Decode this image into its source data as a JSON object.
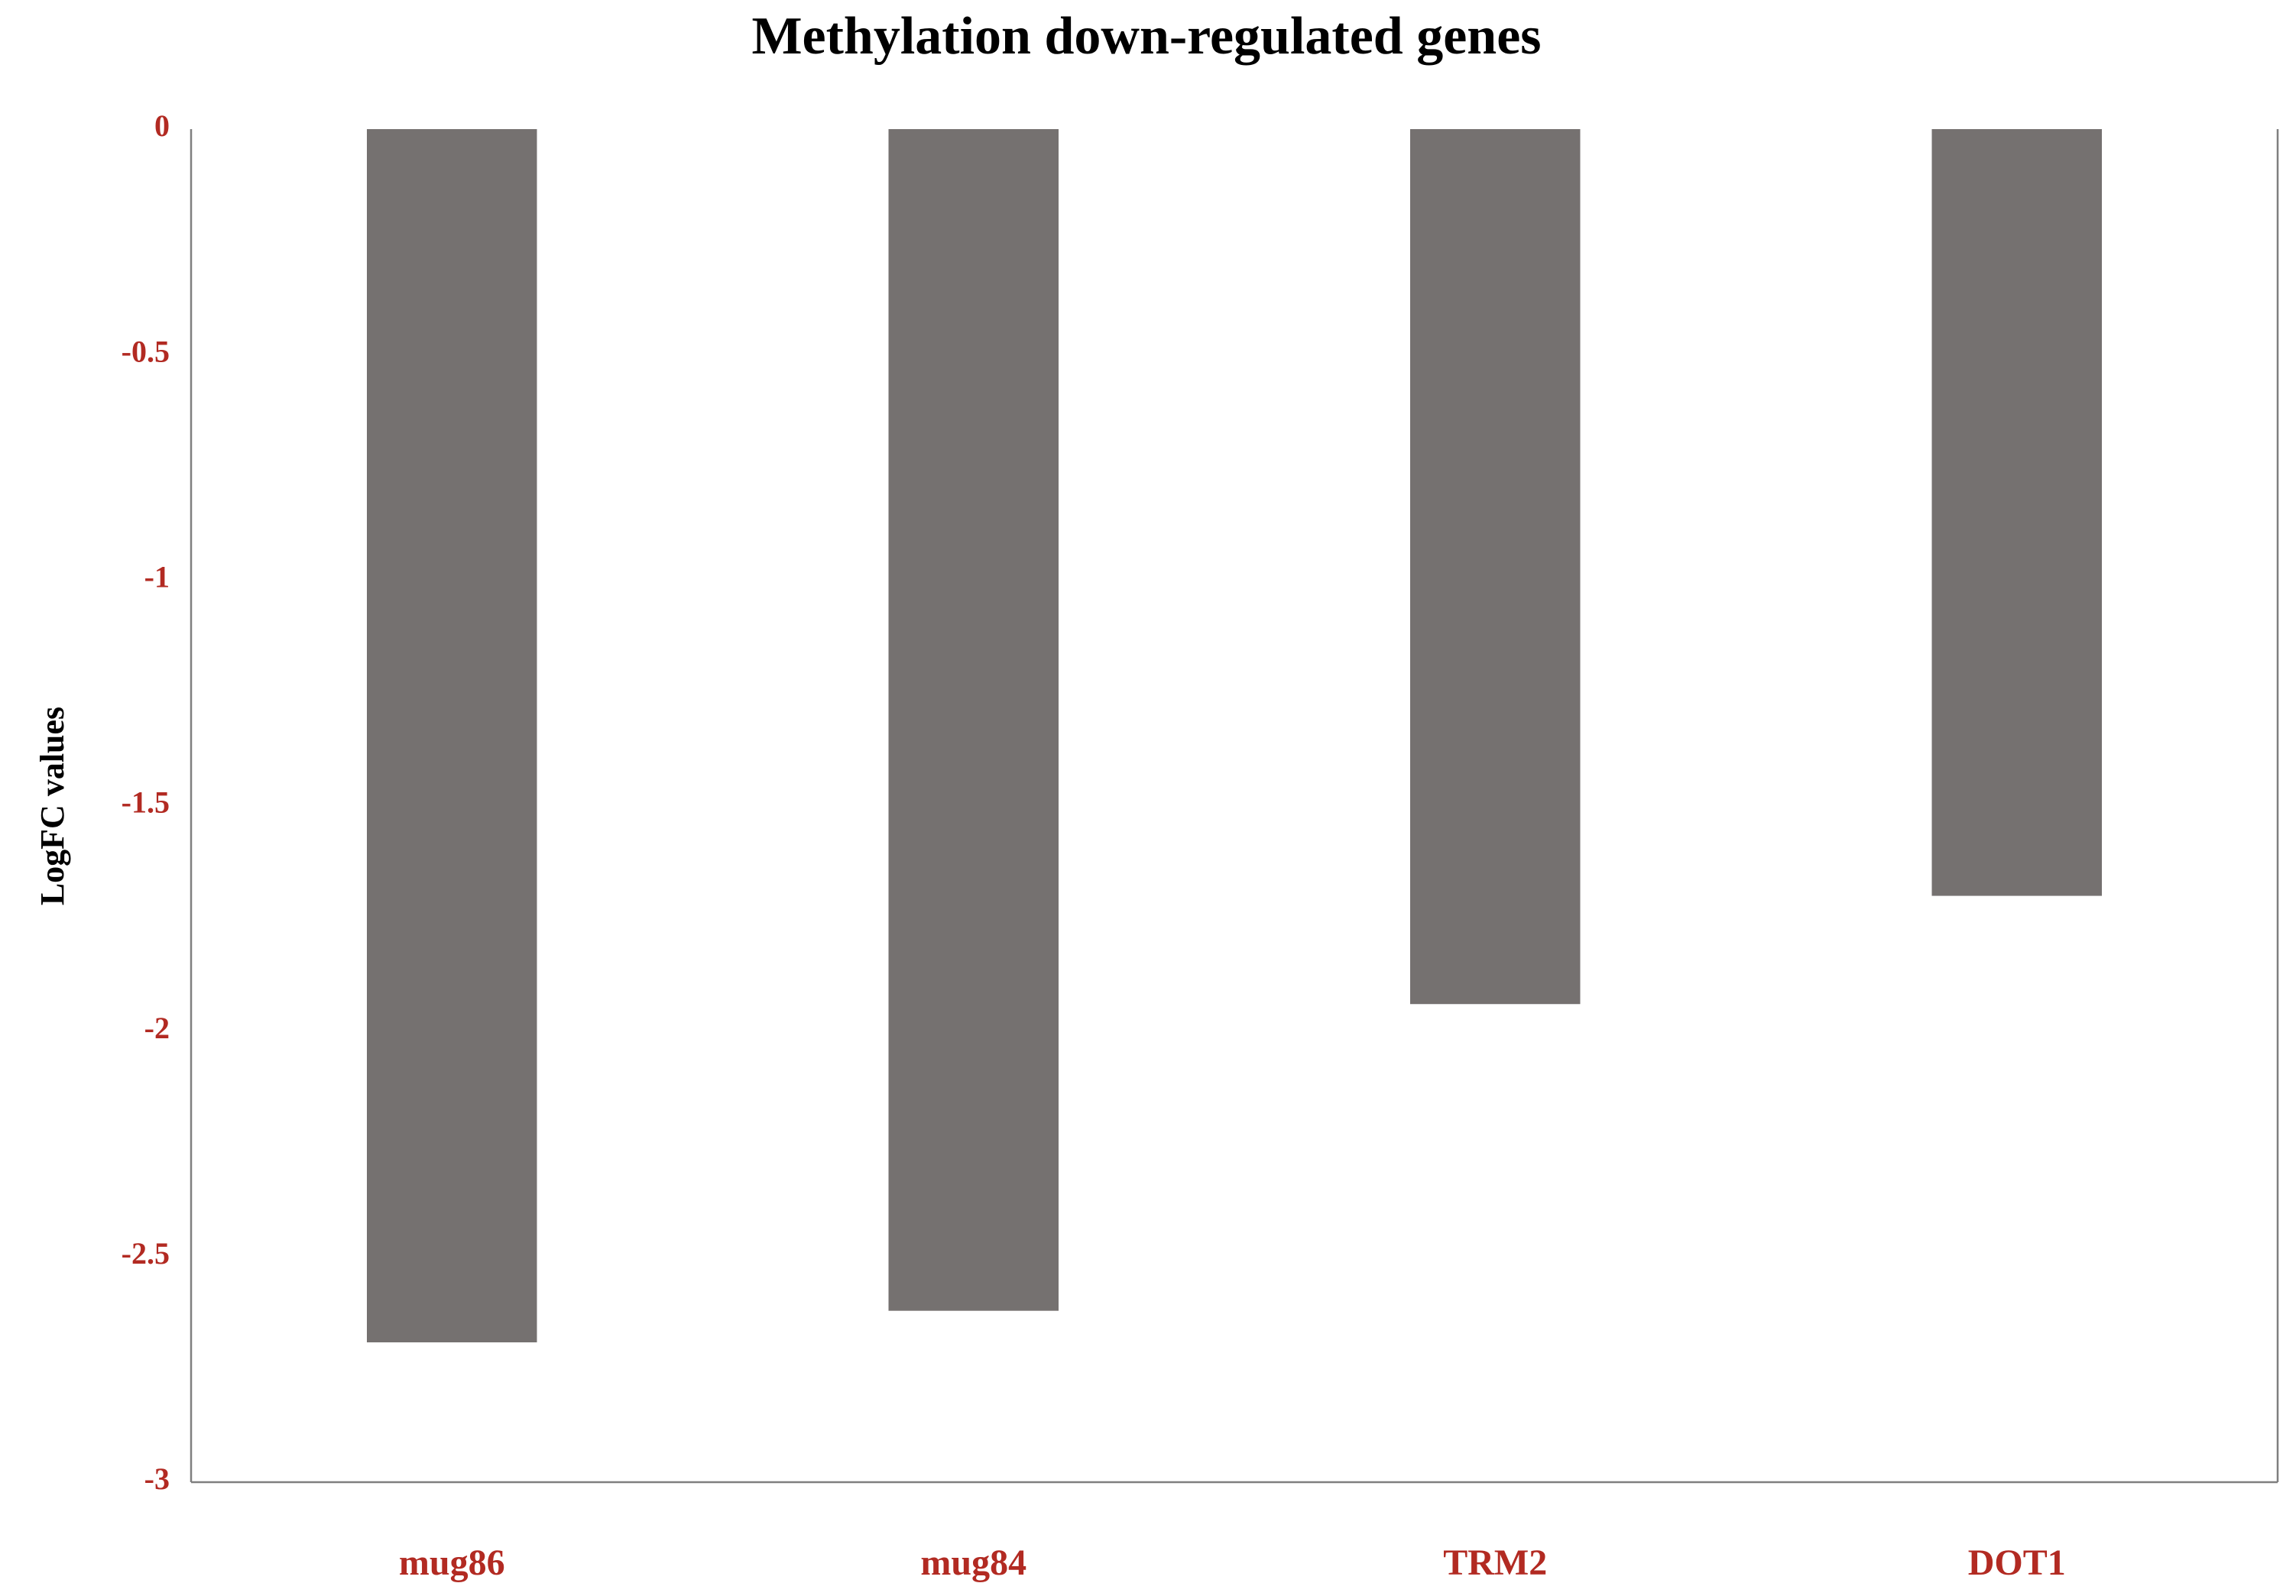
{
  "chart_data": {
    "type": "bar",
    "title": "Methylation down-regulated genes",
    "y_label": "LogFC values",
    "categories": [
      "mug86",
      "mug84",
      "TRM2",
      "DOT1"
    ],
    "values": [
      -2.69,
      -2.62,
      -1.94,
      -1.7
    ],
    "color": "#757170",
    "ylim": [
      -3,
      0
    ],
    "yticks": [
      0,
      -0.5,
      -1,
      -1.5,
      -2,
      -2.5,
      -3
    ],
    "grid": false
  }
}
